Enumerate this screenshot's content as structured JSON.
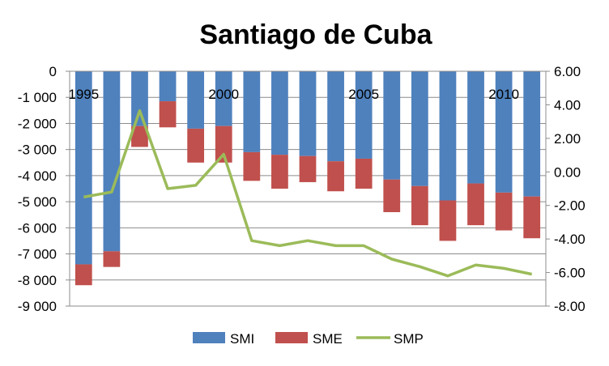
{
  "chart_data": {
    "type": "bar",
    "title": "Santiago de Cuba",
    "categories": [
      "1995",
      "1996",
      "1997",
      "1998",
      "1999",
      "2000",
      "2001",
      "2002",
      "2003",
      "2004",
      "2005",
      "2006",
      "2007",
      "2008",
      "2009",
      "2010",
      "2011"
    ],
    "x_tick_labels": [
      {
        "index": 0,
        "label": "1995"
      },
      {
        "index": 5,
        "label": "2000"
      },
      {
        "index": 10,
        "label": "2005"
      },
      {
        "index": 15,
        "label": "2010"
      }
    ],
    "series": [
      {
        "name": "SMI",
        "type": "stacked-bar",
        "axis": "left",
        "color": "#4f81bd",
        "values": [
          -7400,
          -6900,
          -2100,
          -1150,
          -2200,
          -2100,
          -3100,
          -3200,
          -3250,
          -3450,
          -3350,
          -4150,
          -4400,
          -4950,
          -4300,
          -4650,
          -4800
        ]
      },
      {
        "name": "SME",
        "type": "stacked-bar",
        "axis": "left",
        "color": "#c0504d",
        "values": [
          -800,
          -600,
          -800,
          -1000,
          -1300,
          -1400,
          -1100,
          -1300,
          -1000,
          -1150,
          -1150,
          -1250,
          -1500,
          -1550,
          -1600,
          -1450,
          -1600
        ]
      },
      {
        "name": "SMP",
        "type": "line",
        "axis": "right",
        "color": "#9bbb59",
        "values": [
          -1.5,
          -1.2,
          3.65,
          -1.0,
          -0.8,
          1.05,
          -4.1,
          -4.4,
          -4.1,
          -4.4,
          -4.4,
          -5.2,
          -5.65,
          -6.2,
          -5.55,
          -5.75,
          -6.1
        ]
      }
    ],
    "y_left": {
      "min": -9000,
      "max": 0,
      "step": 1000,
      "tick_labels": [
        "0",
        "-1 000",
        "-2 000",
        "-3 000",
        "-4 000",
        "-5 000",
        "-6 000",
        "-7 000",
        "-8 000",
        "-9 000"
      ]
    },
    "y_right": {
      "min": -8,
      "max": 6,
      "step": 2,
      "tick_labels": [
        "6.00",
        "4.00",
        "2.00",
        "0.00",
        "-2.00",
        "-4.00",
        "-6.00",
        "-8.00"
      ]
    },
    "grid": true,
    "legend": {
      "position": "bottom",
      "entries": [
        "SMI",
        "SME",
        "SMP"
      ]
    }
  }
}
